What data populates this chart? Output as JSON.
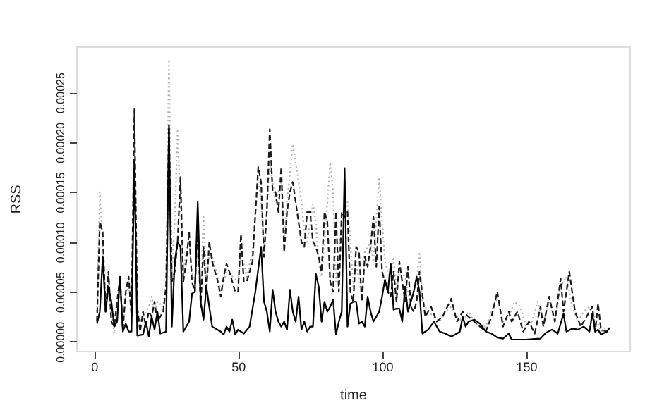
{
  "chart_data": {
    "type": "line",
    "xlabel": "time",
    "ylabel": "RSS",
    "xlim": [
      -6.2,
      185.9
    ],
    "ylim": [
      -9.3e-06,
      0.000296
    ],
    "xticks": [
      0,
      50,
      100,
      150
    ],
    "yticks": [
      {
        "value": 0,
        "label": "0.00000"
      },
      {
        "value": 5e-05,
        "label": "0.00005"
      },
      {
        "value": 0.0001,
        "label": "0.00010"
      },
      {
        "value": 0.00015,
        "label": "0.00015"
      },
      {
        "value": 0.0002,
        "label": "0.00020"
      },
      {
        "value": 0.00025,
        "label": "0.00025"
      }
    ],
    "series": [
      {
        "color": "#b0b0b0",
        "line_style": "dotted",
        "x": [
          1,
          2,
          3,
          4,
          5,
          6,
          7,
          8,
          9,
          10,
          11,
          12,
          13,
          14,
          15,
          16,
          17,
          18,
          19,
          20,
          21,
          22,
          24,
          25,
          26,
          27,
          28,
          29,
          30,
          31,
          32,
          33,
          34,
          35,
          36,
          37,
          38,
          39,
          40,
          41,
          42,
          43,
          44,
          46,
          48,
          50,
          51,
          53,
          55,
          57,
          58,
          59,
          61,
          62,
          63,
          65,
          66,
          67,
          69,
          70,
          72,
          73,
          74,
          76,
          77,
          78,
          79,
          80,
          82,
          83,
          84,
          86,
          88,
          89,
          90,
          91,
          93,
          94,
          96,
          97,
          99,
          100,
          101,
          103,
          104,
          105,
          106,
          108,
          109,
          110,
          112,
          113,
          114,
          116,
          118,
          120,
          122,
          124,
          126,
          128,
          130,
          132,
          134,
          136,
          138,
          140,
          142,
          144,
          146,
          148,
          150,
          152,
          154,
          156,
          158,
          160,
          162,
          164,
          166,
          168,
          170,
          172,
          174,
          176,
          178
        ],
        "values": [
          3e-05,
          0.00015,
          0.0001,
          4e-05,
          6e-05,
          3e-05,
          8e-06,
          3e-05,
          5e-05,
          2e-05,
          4.5e-05,
          6e-05,
          3e-05,
          0.000185,
          3e-05,
          2e-05,
          2.5e-05,
          3e-05,
          3.5e-05,
          4.5e-05,
          3e-05,
          4e-05,
          3.5e-05,
          6e-05,
          0.000283,
          7e-05,
          0.00012,
          0.000213,
          0.00013,
          7e-05,
          9e-05,
          0.0001,
          7e-05,
          6e-05,
          9e-05,
          4e-05,
          0.000125,
          6e-05,
          9e-05,
          8.5e-05,
          7.5e-05,
          6.5e-05,
          5e-05,
          7e-05,
          6.5e-05,
          6e-05,
          9e-05,
          6.5e-05,
          9e-05,
          0.000165,
          0.00014,
          9e-05,
          0.00018,
          0.00016,
          0.00014,
          0.00016,
          0.0001,
          0.00014,
          0.000198,
          0.00018,
          0.00014,
          0.00011,
          0.0001,
          0.000138,
          0.00012,
          8e-05,
          6.5e-05,
          0.0001,
          0.00018,
          0.00015,
          6e-05,
          0.00012,
          0.00014,
          0.0001,
          5.5e-05,
          8e-05,
          4.5e-05,
          9e-05,
          0.0001,
          8e-05,
          0.000165,
          0.00012,
          8e-05,
          6e-05,
          8.5e-05,
          5e-05,
          7e-05,
          6.5e-05,
          5e-05,
          4e-05,
          6e-05,
          9e-05,
          4e-05,
          3e-05,
          2.5e-05,
          2e-05,
          3e-05,
          3.5e-05,
          2.5e-05,
          2e-05,
          3e-05,
          2e-05,
          1.5e-05,
          1.5e-05,
          3e-05,
          4.5e-05,
          2e-05,
          2.5e-05,
          4e-05,
          3.5e-05,
          1.5e-05,
          2e-05,
          4e-05,
          2e-05,
          4e-05,
          2e-05,
          5.5e-05,
          6.5e-05,
          3.5e-05,
          2e-05,
          3e-05,
          3.5e-05,
          2.5e-05,
          1e-05,
          1.5e-05
        ]
      },
      {
        "color": "#1a1a1a",
        "line_style": "dashed",
        "x": [
          1,
          2,
          3,
          4,
          5,
          6,
          7,
          8,
          9,
          10,
          11,
          12,
          13,
          14,
          15,
          16,
          17,
          18,
          19,
          20,
          21,
          22,
          24,
          25,
          26,
          27,
          28,
          29,
          30,
          31,
          32,
          33,
          34,
          35,
          36,
          37,
          38,
          39,
          40,
          41,
          42,
          43,
          44,
          45,
          46,
          47,
          48,
          49,
          50,
          51,
          52,
          53,
          55,
          57,
          58,
          59,
          60,
          61,
          62,
          63,
          64,
          65,
          66,
          67,
          68,
          69,
          70,
          71,
          72,
          73,
          74,
          75,
          76,
          77,
          78,
          79,
          80,
          81,
          82,
          83,
          84,
          85,
          86,
          87,
          88,
          89,
          90,
          91,
          92,
          93,
          94,
          95,
          96,
          97,
          98,
          99,
          100,
          101,
          102,
          103,
          104,
          105,
          106,
          107,
          108,
          109,
          110,
          111,
          112,
          113,
          115,
          117,
          119,
          121,
          124,
          126,
          128,
          130,
          132,
          134,
          136,
          138,
          140,
          142,
          144,
          145,
          147,
          149,
          151,
          153,
          155,
          156,
          158,
          160,
          162,
          163,
          165,
          167,
          169,
          171,
          173,
          174,
          175,
          176,
          178,
          179
        ],
        "values": [
          2e-05,
          0.00012,
          0.00011,
          3e-05,
          7e-05,
          2e-05,
          1.5e-05,
          4e-05,
          6.5e-05,
          1.2e-05,
          5e-05,
          6.5e-05,
          2.5e-05,
          0.000233,
          3.5e-05,
          1e-05,
          3e-05,
          1.5e-05,
          3e-05,
          2.5e-05,
          4e-05,
          2e-05,
          3e-05,
          5.5e-05,
          0.000215,
          6e-05,
          7e-05,
          0.0001,
          0.000165,
          6e-05,
          8e-05,
          0.00011,
          6e-05,
          5e-05,
          0.00012,
          3.5e-05,
          9.5e-05,
          5e-05,
          0.0001,
          8e-05,
          7e-05,
          6e-05,
          4.5e-05,
          6.5e-05,
          7.8e-05,
          7e-05,
          6e-05,
          5e-05,
          5e-05,
          0.000108,
          6e-05,
          6e-05,
          8e-05,
          0.000175,
          0.00016,
          8.5e-05,
          0.00013,
          0.000213,
          0.00015,
          0.00015,
          0.00013,
          0.000175,
          9e-05,
          0.00013,
          0.00015,
          0.00016,
          0.00014,
          0.00012,
          0.0001,
          9.5e-05,
          0.00013,
          0.00013,
          0.0001,
          9.5e-05,
          8.5e-05,
          7e-05,
          0.00013,
          0.00012,
          6e-05,
          5e-05,
          0.00013,
          5e-05,
          0.00013,
          0.000125,
          0.00013,
          5e-05,
          4e-05,
          9.5e-05,
          9e-05,
          4e-05,
          8.5e-05,
          7.5e-05,
          9.5e-05,
          0.000125,
          7.5e-05,
          0.000135,
          7e-05,
          6e-05,
          5e-05,
          4.5e-05,
          7e-05,
          4e-05,
          8e-05,
          6e-05,
          4e-05,
          7.5e-05,
          3.5e-05,
          3e-05,
          4e-05,
          7e-05,
          2.5e-05,
          3.5e-05,
          2e-05,
          2.5e-05,
          4.3e-05,
          2e-05,
          3e-05,
          2.5e-05,
          2e-05,
          1.5e-05,
          1e-05,
          2.5e-05,
          5e-05,
          1.5e-05,
          3e-05,
          2e-05,
          3e-05,
          1e-05,
          2e-05,
          8e-06,
          3.5e-05,
          1.5e-05,
          4.5e-05,
          2e-05,
          6.3e-05,
          3e-05,
          7e-05,
          3e-05,
          1.5e-05,
          2.5e-05,
          3.5e-05,
          1e-05,
          3.8e-05,
          1.2e-05,
          1e-05,
          1e-05
        ]
      },
      {
        "color": "#000000",
        "line_style": "solid",
        "x": [
          1,
          2,
          3,
          4,
          5,
          6,
          7,
          8,
          9,
          10,
          11,
          12,
          13,
          14,
          15,
          17,
          18,
          19,
          20,
          21,
          22,
          23,
          25,
          26,
          27,
          28,
          29,
          30,
          31,
          33,
          34,
          35,
          36,
          37,
          38,
          39,
          40,
          41,
          44,
          45,
          46,
          47,
          48,
          49,
          50,
          52,
          54,
          56,
          58,
          59,
          60,
          61,
          62,
          63,
          64,
          65,
          66,
          67,
          68,
          69,
          70,
          71,
          72,
          73,
          74,
          75,
          76,
          77,
          78,
          79,
          80,
          81,
          82,
          83,
          84,
          85,
          86,
          87,
          88,
          89,
          90,
          91,
          92,
          93,
          94,
          95,
          96,
          97,
          98,
          99,
          100,
          101,
          102,
          103,
          104,
          105,
          106,
          107,
          108,
          109,
          110,
          111,
          112,
          113,
          114,
          116,
          118,
          120,
          122,
          124,
          126,
          127,
          128,
          129,
          130,
          132,
          134,
          136,
          138,
          140,
          142,
          144,
          145,
          150,
          155,
          157,
          159,
          161,
          163,
          164,
          166,
          168,
          170,
          172,
          173,
          174,
          175,
          176,
          178,
          179
        ],
        "values": [
          1.8e-05,
          3e-05,
          8.5e-05,
          3e-05,
          5.5e-05,
          4e-05,
          1.5e-05,
          2e-05,
          6.5e-05,
          1e-05,
          1.8e-05,
          1e-05,
          1e-05,
          0.00018,
          6e-06,
          7e-06,
          2e-05,
          5e-06,
          2.5e-05,
          1.2e-05,
          3e-05,
          8e-06,
          1e-05,
          0.000217,
          1.5e-05,
          8e-05,
          0.0001,
          9.5e-05,
          1e-05,
          2e-05,
          4.8e-05,
          5e-05,
          0.00014,
          4e-05,
          2.2e-05,
          5.5e-05,
          3.5e-05,
          1.5e-05,
          1e-05,
          7e-06,
          1.5e-05,
          1e-05,
          2.2e-05,
          7e-06,
          1.2e-05,
          8e-06,
          1.5e-05,
          5e-05,
          9.5e-05,
          4e-05,
          3e-05,
          1e-05,
          5.2e-05,
          3e-05,
          2e-05,
          1.5e-05,
          2e-05,
          1.2e-05,
          5.2e-05,
          3e-05,
          2e-05,
          4.5e-05,
          1.2e-05,
          2e-05,
          1e-05,
          1.5e-05,
          1.5e-05,
          6.8e-05,
          5.5e-05,
          2e-05,
          4e-05,
          3e-05,
          3.5e-05,
          4.2e-05,
          7e-06,
          2e-05,
          3e-05,
          0.000174,
          1.5e-05,
          3.8e-05,
          4e-05,
          4e-05,
          1.8e-05,
          2e-05,
          1.5e-05,
          4.5e-05,
          3e-05,
          2e-05,
          2.5e-05,
          3e-05,
          4.5e-05,
          6.2e-05,
          5e-05,
          7.8e-05,
          3.2e-05,
          3.3e-05,
          3.3e-05,
          2e-05,
          5.5e-05,
          3e-05,
          4e-05,
          5e-05,
          6.5e-05,
          5e-05,
          8e-06,
          1.2e-05,
          2e-05,
          1e-05,
          8e-06,
          5e-06,
          8e-06,
          1e-05,
          2.5e-05,
          1.5e-05,
          2e-05,
          2.2e-05,
          1.8e-05,
          1e-05,
          8e-06,
          4e-06,
          3e-06,
          8e-06,
          2e-06,
          2e-06,
          3e-06,
          9e-06,
          1.2e-05,
          8e-06,
          2.8e-05,
          1e-05,
          1.3e-05,
          1.2e-05,
          1.5e-05,
          1e-05,
          2.8e-05,
          1e-05,
          1.2e-05,
          7e-06,
          1e-05,
          1.4e-05
        ]
      }
    ]
  }
}
